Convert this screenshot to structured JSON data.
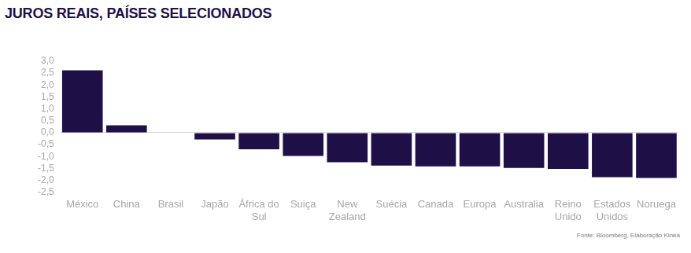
{
  "chart_data": {
    "type": "bar",
    "title": "JUROS REAIS, PAÍSES SELECIONADOS",
    "categories": [
      "México",
      "China",
      "Brasil",
      "Japão",
      "África do Sul",
      "Suiça",
      "New Zealand",
      "Suécia",
      "Canada",
      "Europa",
      "Australia",
      "Reino Unido",
      "Estados Unidos",
      "Noruega"
    ],
    "values": [
      2.62,
      0.31,
      0,
      -0.28,
      -0.69,
      -0.97,
      -1.24,
      -1.38,
      -1.41,
      -1.41,
      -1.48,
      -1.52,
      -1.86,
      -1.9
    ],
    "color": "#1f0f47",
    "ylim": [
      -2.5,
      3
    ],
    "yticks": [
      {
        "value": -2.5,
        "label": "-2,5"
      },
      {
        "value": -2,
        "label": "-2,0"
      },
      {
        "value": -1.5,
        "label": "-1,5"
      },
      {
        "value": -1,
        "label": "-1,0"
      },
      {
        "value": -0.5,
        "label": "-0,5"
      },
      {
        "value": 0,
        "label": "0,0"
      },
      {
        "value": 0.5,
        "label": "0,5"
      },
      {
        "value": 1,
        "label": "1,0"
      },
      {
        "value": 1.5,
        "label": "1,5"
      },
      {
        "value": 2,
        "label": "2,0"
      },
      {
        "value": 2.5,
        "label": "2,5"
      },
      {
        "value": 3,
        "label": "3,0"
      }
    ],
    "grid": false,
    "annotations": [
      "Fonte: Bloomberg, Elaboração Kinea"
    ]
  }
}
